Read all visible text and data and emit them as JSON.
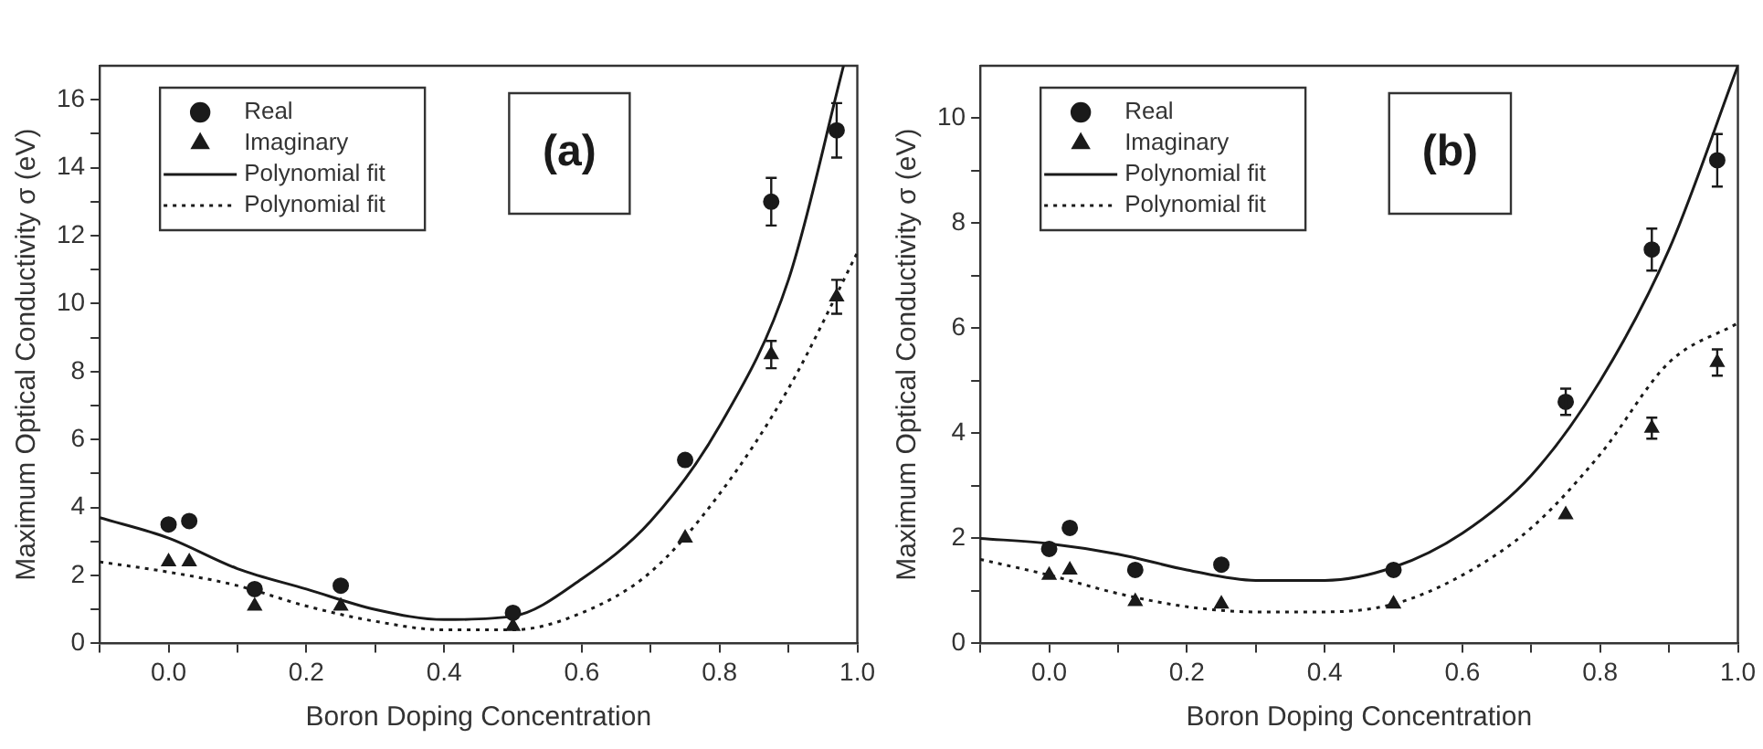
{
  "chart_data": [
    {
      "type": "scatter",
      "xlabel": "Boron Doping Concentration",
      "ylabel": "Maximum Optical Conductivity σ (eV)",
      "xlim": [
        -0.1,
        1.0
      ],
      "ylim": [
        0,
        17
      ],
      "xticks": [
        {
          "value": -0.1,
          "label": null
        },
        {
          "value": 0,
          "label": "0.0"
        },
        {
          "value": 0.1,
          "label": null
        },
        {
          "value": 0.2,
          "label": "0.2"
        },
        {
          "value": 0.3,
          "label": null
        },
        {
          "value": 0.4,
          "label": "0.4"
        },
        {
          "value": 0.5,
          "label": null
        },
        {
          "value": 0.6,
          "label": "0.6"
        },
        {
          "value": 0.7,
          "label": null
        },
        {
          "value": 0.8,
          "label": "0.8"
        },
        {
          "value": 0.9,
          "label": null
        },
        {
          "value": 1.0,
          "label": "1.0"
        }
      ],
      "yticks": [
        0,
        {
          "value": 1,
          "label": null
        },
        2,
        {
          "value": 3,
          "label": null
        },
        4,
        {
          "value": 5,
          "label": null
        },
        6,
        {
          "value": 7,
          "label": null
        },
        8,
        {
          "value": 9,
          "label": null
        },
        10,
        {
          "value": 11,
          "label": null
        },
        12,
        {
          "value": 13,
          "label": null
        },
        14,
        {
          "value": 15,
          "label": null
        },
        16
      ],
      "grid": false,
      "legend": "top left",
      "annotations": [
        "(a)"
      ],
      "series": [
        {
          "name": "Real",
          "marker": "circle",
          "color": "#1a1a1a",
          "x": [
            0,
            0.03,
            0.125,
            0.25,
            0.5,
            0.75,
            0.875,
            0.97
          ],
          "values": [
            3.5,
            3.6,
            1.6,
            1.7,
            0.9,
            5.4,
            13.0,
            15.1
          ],
          "errors": [
            null,
            null,
            null,
            null,
            null,
            null,
            0.7,
            0.8
          ]
        },
        {
          "name": "Imaginary",
          "marker": "triangle",
          "color": "#1a1a1a",
          "x": [
            0,
            0.03,
            0.125,
            0.25,
            0.5,
            0.75,
            0.875,
            0.97
          ],
          "values": [
            2.4,
            2.4,
            1.1,
            1.1,
            0.5,
            3.1,
            8.5,
            10.2
          ],
          "errors": [
            null,
            null,
            null,
            null,
            null,
            null,
            0.4,
            0.5
          ]
        },
        {
          "name": "Polynomial fit",
          "type": "line",
          "marker": "none",
          "line_style": "solid",
          "color": "#1a1a1a",
          "x": [
            -0.1,
            0,
            0.1,
            0.2,
            0.3,
            0.4,
            0.5,
            0.6,
            0.7,
            0.8,
            0.9,
            0.98
          ],
          "values": [
            3.7,
            3.1,
            2.2,
            1.6,
            1.0,
            0.7,
            0.8,
            1.9,
            3.6,
            6.4,
            10.7,
            17.0
          ]
        },
        {
          "name": "Polynomial fit",
          "type": "line",
          "marker": "none",
          "line_style": "dotted",
          "color": "#1a1a1a",
          "x": [
            -0.1,
            0,
            0.1,
            0.2,
            0.3,
            0.4,
            0.5,
            0.6,
            0.7,
            0.8,
            0.9,
            1.0
          ],
          "values": [
            2.4,
            2.1,
            1.7,
            1.1,
            0.65,
            0.4,
            0.4,
            0.9,
            2.1,
            4.4,
            7.5,
            11.5
          ]
        }
      ]
    },
    {
      "type": "scatter",
      "xlabel": "Boron Doping Concentration",
      "ylabel": "Maximum Optical Conductivity σ (eV)",
      "xlim": [
        -0.1,
        1.0
      ],
      "ylim": [
        0,
        11
      ],
      "xticks": [
        {
          "value": -0.1,
          "label": null
        },
        {
          "value": 0,
          "label": "0.0"
        },
        {
          "value": 0.1,
          "label": null
        },
        {
          "value": 0.2,
          "label": "0.2"
        },
        {
          "value": 0.3,
          "label": null
        },
        {
          "value": 0.4,
          "label": "0.4"
        },
        {
          "value": 0.5,
          "label": null
        },
        {
          "value": 0.6,
          "label": "0.6"
        },
        {
          "value": 0.7,
          "label": null
        },
        {
          "value": 0.8,
          "label": "0.8"
        },
        {
          "value": 0.9,
          "label": null
        },
        {
          "value": 1.0,
          "label": "1.0"
        }
      ],
      "yticks": [
        0,
        {
          "value": 1,
          "label": null
        },
        2,
        {
          "value": 3,
          "label": null
        },
        4,
        {
          "value": 5,
          "label": null
        },
        6,
        {
          "value": 7,
          "label": null
        },
        8,
        {
          "value": 9,
          "label": null
        },
        10
      ],
      "grid": false,
      "legend": "top left",
      "annotations": [
        "(b)"
      ],
      "series": [
        {
          "name": "Real",
          "marker": "circle",
          "color": "#1a1a1a",
          "x": [
            0,
            0.03,
            0.125,
            0.25,
            0.5,
            0.75,
            0.875,
            0.97
          ],
          "values": [
            1.8,
            2.2,
            1.4,
            1.5,
            1.4,
            4.6,
            7.5,
            9.2
          ],
          "errors": [
            null,
            null,
            null,
            null,
            null,
            0.25,
            0.4,
            0.5
          ]
        },
        {
          "name": "Imaginary",
          "marker": "triangle",
          "color": "#1a1a1a",
          "x": [
            0,
            0.03,
            0.125,
            0.25,
            0.5,
            0.75,
            0.875,
            0.97
          ],
          "values": [
            1.3,
            1.4,
            0.8,
            0.75,
            0.75,
            2.45,
            4.1,
            5.35
          ],
          "errors": [
            null,
            null,
            null,
            null,
            null,
            null,
            0.2,
            0.25
          ]
        },
        {
          "name": "Polynomial fit",
          "type": "line",
          "marker": "none",
          "line_style": "solid",
          "color": "#1a1a1a",
          "x": [
            -0.1,
            0,
            0.1,
            0.2,
            0.3,
            0.4,
            0.5,
            0.6,
            0.7,
            0.8,
            0.9,
            1.0
          ],
          "values": [
            2.0,
            1.9,
            1.7,
            1.4,
            1.2,
            1.2,
            1.45,
            2.1,
            3.2,
            5.0,
            7.5,
            11.0
          ]
        },
        {
          "name": "Polynomial fit",
          "type": "line",
          "marker": "none",
          "line_style": "dotted",
          "color": "#1a1a1a",
          "x": [
            -0.1,
            0,
            0.1,
            0.2,
            0.3,
            0.4,
            0.5,
            0.6,
            0.7,
            0.8,
            0.9,
            1.0
          ],
          "values": [
            1.6,
            1.3,
            0.95,
            0.7,
            0.6,
            0.6,
            0.75,
            1.3,
            2.2,
            3.6,
            5.35,
            6.1
          ]
        }
      ]
    }
  ]
}
